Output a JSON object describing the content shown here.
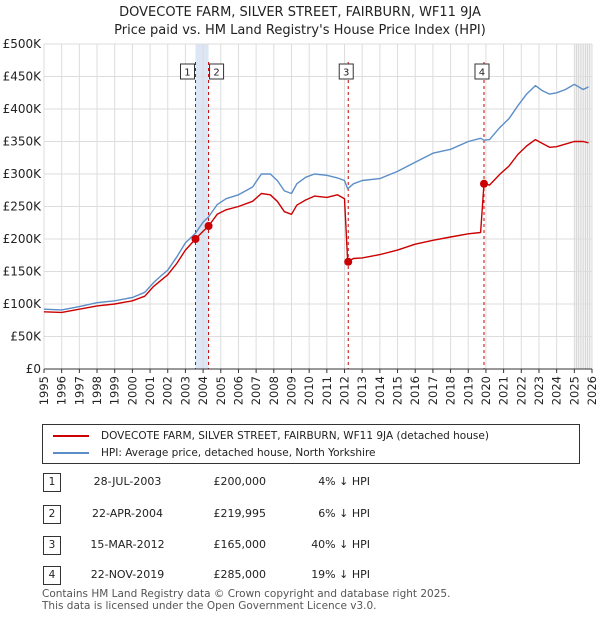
{
  "title": "DOVECOTE FARM, SILVER STREET, FAIRBURN, WF11 9JA",
  "subtitle": "Price paid vs. HM Land Registry's House Price Index (HPI)",
  "colors": {
    "property": "#cc0000",
    "hpi": "#5b8ec7",
    "band": "#dde6f4",
    "grid": "#dddddd"
  },
  "chart_data": {
    "type": "line",
    "title": "DOVECOTE FARM, SILVER STREET, FAIRBURN, WF11 9JA",
    "subtitle": "Price paid vs. HM Land Registry's House Price Index (HPI)",
    "xlim": [
      1995,
      2026
    ],
    "ylim": [
      0,
      500000
    ],
    "y_ticks": [
      {
        "value": 0,
        "label": "£0"
      },
      {
        "value": 50000,
        "label": "£50K"
      },
      {
        "value": 100000,
        "label": "£100K"
      },
      {
        "value": 150000,
        "label": "£150K"
      },
      {
        "value": 200000,
        "label": "£200K"
      },
      {
        "value": 250000,
        "label": "£250K"
      },
      {
        "value": 300000,
        "label": "£300K"
      },
      {
        "value": 350000,
        "label": "£350K"
      },
      {
        "value": 400000,
        "label": "£400K"
      },
      {
        "value": 450000,
        "label": "£450K"
      },
      {
        "value": 500000,
        "label": "£500K"
      }
    ],
    "x_ticks": [
      "1995",
      "1996",
      "1997",
      "1998",
      "1999",
      "2000",
      "2001",
      "2002",
      "2003",
      "2004",
      "2005",
      "2006",
      "2007",
      "2008",
      "2009",
      "2010",
      "2011",
      "2012",
      "2013",
      "2014",
      "2015",
      "2016",
      "2017",
      "2018",
      "2019",
      "2020",
      "2021",
      "2022",
      "2023",
      "2024",
      "2025",
      "2026"
    ],
    "grid": true,
    "series": [
      {
        "name": "DOVECOTE FARM, SILVER STREET, FAIRBURN, WF11 9JA (detached house)",
        "color": "#cc0000",
        "x": [
          1995.0,
          1996.0,
          1997.0,
          1998.0,
          1999.0,
          2000.0,
          2000.7,
          2001.2,
          2001.6,
          2002.0,
          2002.5,
          2003.0,
          2003.57,
          2004.0,
          2004.31,
          2004.8,
          2005.3,
          2006.0,
          2006.8,
          2007.3,
          2007.8,
          2008.2,
          2008.6,
          2009.0,
          2009.3,
          2009.8,
          2010.3,
          2011.0,
          2011.6,
          2012.0,
          2012.18,
          2012.5,
          2013.0,
          2014.0,
          2015.0,
          2016.0,
          2017.0,
          2018.0,
          2019.0,
          2019.7,
          2019.89,
          2020.2,
          2020.8,
          2021.3,
          2021.8,
          2022.3,
          2022.8,
          2023.2,
          2023.6,
          2024.0,
          2024.5,
          2025.0,
          2025.5,
          2025.8
        ],
        "y": [
          88000,
          87000,
          92000,
          97000,
          100000,
          105000,
          112000,
          127000,
          136000,
          145000,
          162000,
          183000,
          200000,
          212000,
          219995,
          238000,
          245000,
          250000,
          258000,
          270000,
          268000,
          258000,
          242000,
          238000,
          252000,
          260000,
          266000,
          264000,
          268000,
          262000,
          165000,
          170000,
          171000,
          176000,
          183000,
          192000,
          198000,
          203000,
          208000,
          210000,
          285000,
          283000,
          300000,
          312000,
          330000,
          343000,
          353000,
          347000,
          341000,
          342000,
          346000,
          350000,
          350000,
          348000
        ]
      },
      {
        "name": "HPI: Average price, detached house, North Yorkshire",
        "color": "#5b8ec7",
        "x": [
          1995.0,
          1996.0,
          1997.0,
          1998.0,
          1999.0,
          2000.0,
          2000.7,
          2001.2,
          2001.6,
          2002.0,
          2002.5,
          2003.0,
          2003.57,
          2004.0,
          2004.31,
          2004.8,
          2005.3,
          2006.0,
          2006.8,
          2007.3,
          2007.8,
          2008.2,
          2008.6,
          2009.0,
          2009.3,
          2009.8,
          2010.3,
          2011.0,
          2011.6,
          2012.0,
          2012.18,
          2012.5,
          2013.0,
          2014.0,
          2015.0,
          2016.0,
          2017.0,
          2018.0,
          2019.0,
          2019.7,
          2019.89,
          2020.2,
          2020.8,
          2021.3,
          2021.8,
          2022.3,
          2022.8,
          2023.2,
          2023.6,
          2024.0,
          2024.5,
          2025.0,
          2025.5,
          2025.8
        ],
        "y": [
          92000,
          91000,
          96000,
          102000,
          105000,
          110000,
          118000,
          133000,
          143000,
          152000,
          172000,
          194000,
          209000,
          226000,
          234000,
          253000,
          262000,
          268000,
          280000,
          300000,
          300000,
          290000,
          274000,
          270000,
          285000,
          295000,
          300000,
          298000,
          294000,
          290000,
          277000,
          285000,
          290000,
          293000,
          304000,
          318000,
          332000,
          338000,
          350000,
          355000,
          352000,
          353000,
          372000,
          385000,
          405000,
          423000,
          436000,
          428000,
          423000,
          425000,
          430000,
          438000,
          430000,
          434000
        ]
      }
    ],
    "sales": [
      {
        "id": "1",
        "x": 2003.57,
        "y": 200000
      },
      {
        "id": "2",
        "x": 2004.31,
        "y": 219995
      },
      {
        "id": "3",
        "x": 2012.21,
        "y": 165000
      },
      {
        "id": "4",
        "x": 2019.89,
        "y": 285000
      }
    ],
    "shaded_band": [
      2003.57,
      2004.31
    ],
    "projection_start": 2025.0
  },
  "legend": {
    "property_label": "DOVECOTE FARM, SILVER STREET, FAIRBURN, WF11 9JA (detached house)",
    "hpi_label": "HPI: Average price, detached house, North Yorkshire"
  },
  "sales_table": [
    {
      "num": "1",
      "date": "28-JUL-2003",
      "price": "£200,000",
      "hpi": "4% ↓ HPI"
    },
    {
      "num": "2",
      "date": "22-APR-2004",
      "price": "£219,995",
      "hpi": "6% ↓ HPI"
    },
    {
      "num": "3",
      "date": "15-MAR-2012",
      "price": "£165,000",
      "hpi": "40% ↓ HPI"
    },
    {
      "num": "4",
      "date": "22-NOV-2019",
      "price": "£285,000",
      "hpi": "19% ↓ HPI"
    }
  ],
  "footer": {
    "line1": "Contains HM Land Registry data © Crown copyright and database right 2025.",
    "line2": "This data is licensed under the Open Government Licence v3.0."
  }
}
